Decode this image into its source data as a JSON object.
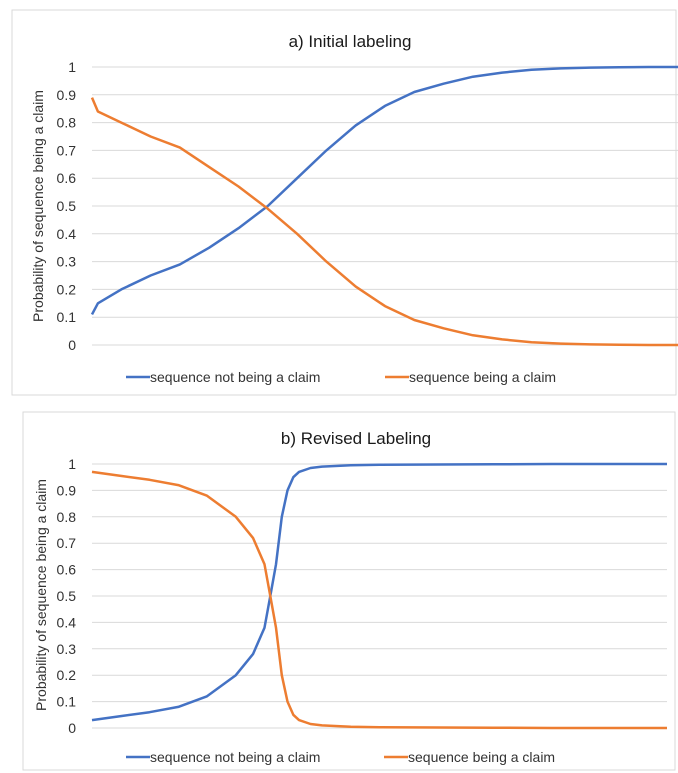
{
  "colors": {
    "series1": "#4472C4",
    "series2": "#ED7D31",
    "grid": "#d9d9d9",
    "frame": "#d9d9d9"
  },
  "chart_data": [
    {
      "type": "line",
      "title": "a) Initial labeling",
      "ylabel": "Probability of sequence being a claim",
      "xlabel": "",
      "ylim": [
        0,
        1
      ],
      "yticks": [
        "0",
        "0.1",
        "0.2",
        "0.3",
        "0.4",
        "0.5",
        "0.6",
        "0.7",
        "0.8",
        "0.9",
        "1"
      ],
      "x": [
        0,
        0.01,
        0.05,
        0.1,
        0.15,
        0.2,
        0.25,
        0.3,
        0.35,
        0.4,
        0.45,
        0.5,
        0.55,
        0.6,
        0.65,
        0.7,
        0.75,
        0.8,
        0.85,
        0.9,
        0.95,
        1
      ],
      "series": [
        {
          "name": "sequence not being a claim",
          "values": [
            0.11,
            0.15,
            0.2,
            0.25,
            0.29,
            0.35,
            0.42,
            0.5,
            0.6,
            0.7,
            0.79,
            0.86,
            0.91,
            0.94,
            0.965,
            0.98,
            0.99,
            0.995,
            0.998,
            0.999,
            1.0,
            1.0
          ]
        },
        {
          "name": "sequence being a claim",
          "values": [
            0.89,
            0.84,
            0.8,
            0.75,
            0.71,
            0.64,
            0.57,
            0.49,
            0.4,
            0.3,
            0.21,
            0.14,
            0.09,
            0.06,
            0.035,
            0.02,
            0.01,
            0.005,
            0.002,
            0.001,
            0.0,
            0.0
          ]
        }
      ],
      "legend": "bottom"
    },
    {
      "type": "line",
      "title": "b) Revised Labeling",
      "ylabel": "Probability of sequence being a claim",
      "xlabel": "",
      "ylim": [
        0,
        1
      ],
      "yticks": [
        "0",
        "0.1",
        "0.2",
        "0.3",
        "0.4",
        "0.5",
        "0.6",
        "0.7",
        "0.8",
        "0.9",
        "1"
      ],
      "x": [
        0,
        0.05,
        0.1,
        0.15,
        0.2,
        0.25,
        0.28,
        0.3,
        0.31,
        0.32,
        0.33,
        0.34,
        0.35,
        0.36,
        0.38,
        0.4,
        0.45,
        0.5,
        0.6,
        0.7,
        0.8,
        0.9,
        1
      ],
      "series": [
        {
          "name": "sequence not being a claim",
          "values": [
            0.03,
            0.045,
            0.06,
            0.08,
            0.12,
            0.2,
            0.28,
            0.38,
            0.5,
            0.62,
            0.8,
            0.9,
            0.95,
            0.97,
            0.985,
            0.99,
            0.995,
            0.997,
            0.998,
            0.999,
            1.0,
            1.0,
            1.0
          ]
        },
        {
          "name": "sequence being a claim",
          "values": [
            0.97,
            0.955,
            0.94,
            0.92,
            0.88,
            0.8,
            0.72,
            0.62,
            0.5,
            0.38,
            0.2,
            0.1,
            0.05,
            0.03,
            0.015,
            0.01,
            0.005,
            0.003,
            0.002,
            0.001,
            0.0,
            0.0,
            0.0
          ]
        }
      ],
      "legend": "bottom"
    }
  ]
}
